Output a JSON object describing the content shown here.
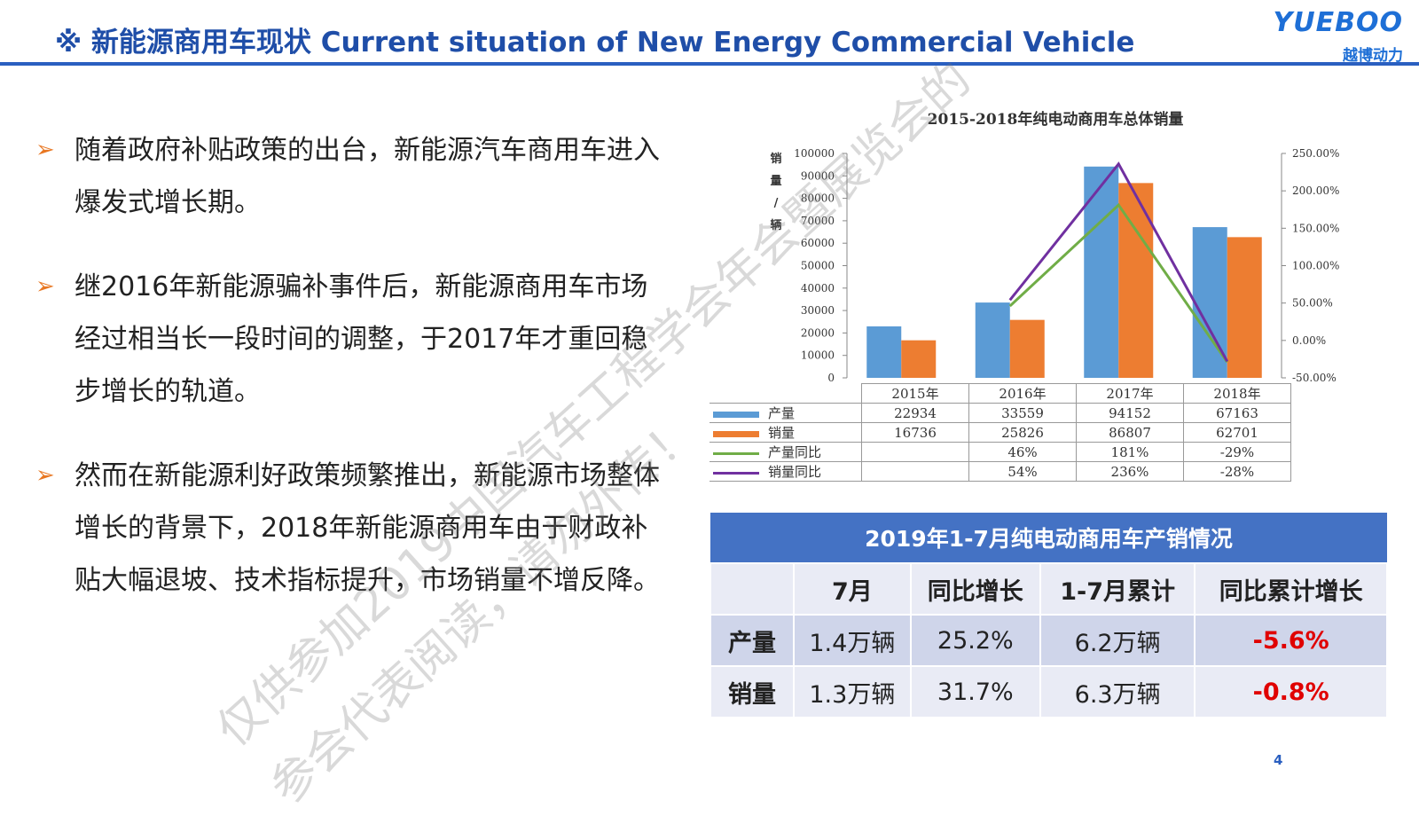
{
  "header": {
    "title": "※ 新能源商用车现状 Current situation of New Energy Commercial Vehicle",
    "logo_en": "YUEBOO",
    "logo_cn": "越博动力"
  },
  "bullets": [
    "随着政府补贴政策的出台，新能源汽车商用车进入爆发式增长期。",
    "继2016年新能源骗补事件后，新能源商用车市场经过相当长一段时间的调整，于2017年才重回稳步增长的轨道。",
    "然而在新能源利好政策频繁推出，新能源市场整体增长的背景下，2018年新能源商用车由于财政补贴大幅退坡、技术指标提升，市场销量不增反降。"
  ],
  "chart_data": {
    "type": "bar",
    "title": "2015-2018年纯电动商用车总体销量",
    "ylabel": "销量/辆",
    "categories": [
      "2015年",
      "2016年",
      "2017年",
      "2018年"
    ],
    "ylim": [
      0,
      100000
    ],
    "yticks": [
      "0",
      "10000",
      "20000",
      "30000",
      "40000",
      "50000",
      "60000",
      "70000",
      "80000",
      "90000",
      "100000"
    ],
    "y2lim": [
      -50,
      250
    ],
    "y2ticks": [
      "-50.00%",
      "0.00%",
      "50.00%",
      "100.00%",
      "150.00%",
      "200.00%",
      "250.00%"
    ],
    "series": [
      {
        "name": "产量",
        "type": "bar",
        "color": "#5b9bd5",
        "values": [
          22934,
          33559,
          94152,
          67163
        ],
        "labels": [
          "22934",
          "33559",
          "94152",
          "67163"
        ]
      },
      {
        "name": "销量",
        "type": "bar",
        "color": "#ed7d31",
        "values": [
          16736,
          25826,
          86807,
          62701
        ],
        "labels": [
          "16736",
          "25826",
          "86807",
          "62701"
        ]
      },
      {
        "name": "产量同比",
        "type": "line",
        "axis": "right",
        "color": "#70ad47",
        "values": [
          null,
          46,
          181,
          -29
        ],
        "labels": [
          "",
          "46%",
          "181%",
          "-29%"
        ]
      },
      {
        "name": "销量同比",
        "type": "line",
        "axis": "right",
        "color": "#7030a0",
        "values": [
          null,
          54,
          236,
          -28
        ],
        "labels": [
          "",
          "54%",
          "236%",
          "-28%"
        ]
      }
    ]
  },
  "sales_table": {
    "caption": "2019年1-7月纯电动商用车产销情况",
    "headers": [
      "",
      "7月",
      "同比增长",
      "1-7月累计",
      "同比累计增长"
    ],
    "rows": [
      [
        "产量",
        "1.4万辆",
        "25.2%",
        "6.2万辆",
        "-5.6%"
      ],
      [
        "销量",
        "1.3万辆",
        "31.7%",
        "6.3万辆",
        "-0.8%"
      ]
    ]
  },
  "watermark": {
    "line1": "仅供参加2019中国汽车工程学会年会暨展览会的",
    "line2": "参会代表阅读，请勿外传！"
  },
  "page_number": "4"
}
